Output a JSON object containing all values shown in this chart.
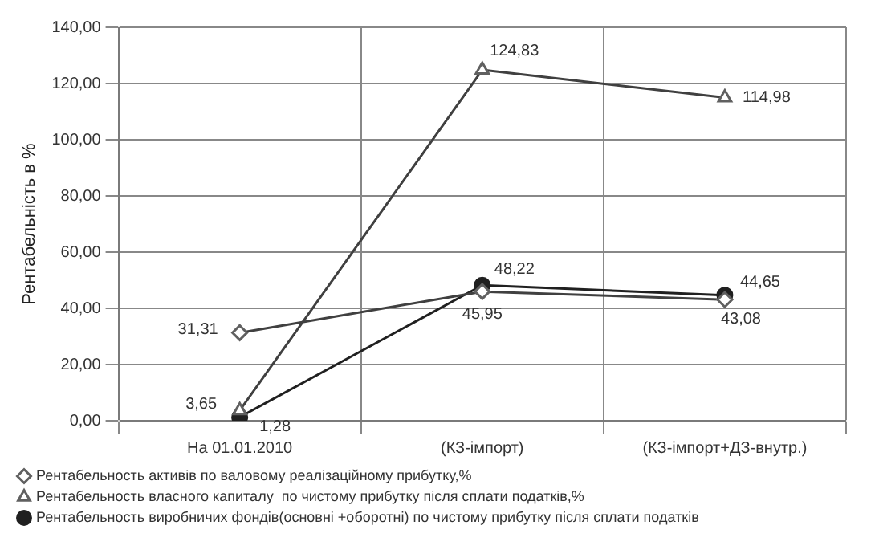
{
  "chart_data": {
    "type": "line",
    "ylabel": "Рентабельність в %",
    "categories": [
      "На 01.01.2010",
      "(КЗ-імпорт)",
      "(КЗ-імпорт+ДЗ-внутр.)"
    ],
    "series": [
      {
        "name": "Рентабельность активів по валовому реалізаційному прибутку,%",
        "color": "#404040",
        "marker": "diamond",
        "values": [
          31.31,
          45.95,
          43.08
        ],
        "value_labels": [
          "31,31",
          "45,95",
          "43,08"
        ]
      },
      {
        "name": "Рентабельность власного капиталу  по чистому прибутку після сплати податків,%",
        "color": "#404040",
        "marker": "triangle",
        "values": [
          3.65,
          124.83,
          114.98
        ],
        "value_labels": [
          "3,65",
          "124,83",
          "114,98"
        ]
      },
      {
        "name": "Рентабельность виробничих фондів(основні +оборотні) по чистому прибутку після сплати податків",
        "color": "#202020",
        "marker": "circle",
        "values": [
          1.28,
          48.22,
          44.65
        ],
        "value_labels": [
          "1,28",
          "48,22",
          "44,65"
        ]
      }
    ],
    "ylim": [
      0,
      140
    ],
    "yticks": [
      {
        "value": 0,
        "label": "0,00"
      },
      {
        "value": 20,
        "label": "20,00"
      },
      {
        "value": 40,
        "label": "40,00"
      },
      {
        "value": 60,
        "label": "60,00"
      },
      {
        "value": 80,
        "label": "80,00"
      },
      {
        "value": 100,
        "label": "100,00"
      },
      {
        "value": 120,
        "label": "120,00"
      },
      {
        "value": 140,
        "label": "140,00"
      }
    ],
    "grid": true,
    "legend": "bottom",
    "line_style": "solid"
  }
}
